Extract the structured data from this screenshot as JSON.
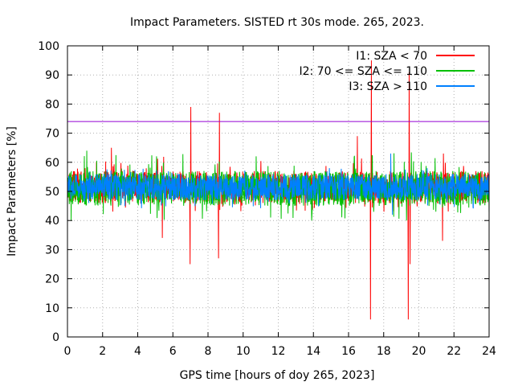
{
  "chart_data": {
    "type": "line",
    "title": "Impact Parameters. SISTED rt 30s mode. 265, 2023.",
    "xlabel": "GPS time [hours of doy 265, 2023]",
    "ylabel": "Impact Parameters [%]",
    "xlim": [
      0,
      24
    ],
    "ylim": [
      0,
      100
    ],
    "xticks": [
      0,
      2,
      4,
      6,
      8,
      10,
      12,
      14,
      16,
      18,
      20,
      22,
      24
    ],
    "yticks": [
      0,
      10,
      20,
      30,
      40,
      50,
      60,
      70,
      80,
      90,
      100
    ],
    "grid": true,
    "legend_position": "top-right",
    "reference_line": {
      "y": 74,
      "color": "#9400d3"
    },
    "series": [
      {
        "name": "I1: SZA < 70",
        "color": "#ff0000",
        "baseline": 51,
        "noise": {
          "low": 46,
          "high": 57,
          "occasional_low": 43,
          "occasional_high": 62
        },
        "spikes": [
          {
            "x": 2.5,
            "y": 65
          },
          {
            "x": 5.4,
            "y": 34
          },
          {
            "x": 6.98,
            "y": 25
          },
          {
            "x": 7.02,
            "y": 79
          },
          {
            "x": 8.6,
            "y": 27
          },
          {
            "x": 8.65,
            "y": 77
          },
          {
            "x": 16.5,
            "y": 69
          },
          {
            "x": 17.25,
            "y": 6
          },
          {
            "x": 17.3,
            "y": 95
          },
          {
            "x": 19.4,
            "y": 6
          },
          {
            "x": 19.45,
            "y": 91
          },
          {
            "x": 19.5,
            "y": 25
          },
          {
            "x": 21.35,
            "y": 33
          },
          {
            "x": 21.4,
            "y": 63
          }
        ]
      },
      {
        "name": "I2: 70 <= SZA <= 110",
        "color": "#00c000",
        "baseline": 51,
        "noise": {
          "low": 45,
          "high": 57,
          "occasional_low": 40,
          "occasional_high": 64
        },
        "spikes": [
          {
            "x": 1.1,
            "y": 64
          },
          {
            "x": 13.9,
            "y": 40
          },
          {
            "x": 19.3,
            "y": 40
          }
        ]
      },
      {
        "name": "I3: SZA > 110",
        "color": "#0080ff",
        "baseline": 51,
        "noise": {
          "low": 47,
          "high": 56,
          "occasional_low": 44,
          "occasional_high": 58
        },
        "spikes": [
          {
            "x": 18.4,
            "y": 63
          },
          {
            "x": 18.5,
            "y": 42
          }
        ]
      }
    ]
  }
}
